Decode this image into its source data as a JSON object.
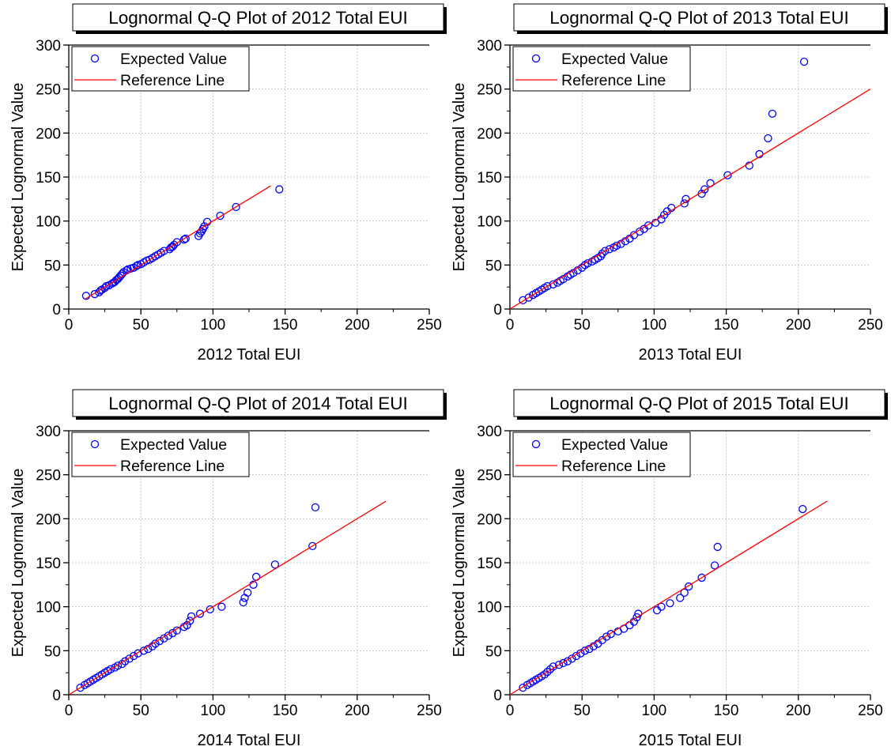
{
  "chart_data": [
    {
      "type": "scatter",
      "title": "Lognormal Q-Q Plot of 2012 Total EUI",
      "xlabel": "2012 Total EUI",
      "ylabel": "Expected Lognormal Value",
      "xlim": [
        0,
        250
      ],
      "ylim": [
        0,
        300
      ],
      "xticks": [
        "0",
        "50",
        "100",
        "150",
        "200",
        "250"
      ],
      "yticks": [
        "0",
        "50",
        "100",
        "150",
        "200",
        "250",
        "300"
      ],
      "grid": true,
      "legend": {
        "position": "top-left",
        "entries": [
          "Expected Value",
          "Reference Line"
        ]
      },
      "series": [
        {
          "name": "Expected Value",
          "marker": "circle",
          "color": "#0000ff",
          "points": [
            [
              12,
              15
            ],
            [
              18,
              17
            ],
            [
              21,
              19
            ],
            [
              22,
              21
            ],
            [
              23,
              22
            ],
            [
              25,
              24
            ],
            [
              26,
              26
            ],
            [
              28,
              27
            ],
            [
              30,
              29
            ],
            [
              31,
              30
            ],
            [
              32,
              31
            ],
            [
              33,
              33
            ],
            [
              34,
              34
            ],
            [
              35,
              36
            ],
            [
              36,
              38
            ],
            [
              37,
              40
            ],
            [
              38,
              42
            ],
            [
              40,
              44
            ],
            [
              41,
              45
            ],
            [
              43,
              46
            ],
            [
              45,
              47
            ],
            [
              47,
              49
            ],
            [
              48,
              50
            ],
            [
              50,
              51
            ],
            [
              52,
              53
            ],
            [
              54,
              55
            ],
            [
              56,
              56
            ],
            [
              58,
              58
            ],
            [
              60,
              60
            ],
            [
              62,
              62
            ],
            [
              64,
              64
            ],
            [
              66,
              66
            ],
            [
              70,
              68
            ],
            [
              71,
              70
            ],
            [
              72,
              71
            ],
            [
              73,
              73
            ],
            [
              75,
              76
            ],
            [
              80,
              79
            ],
            [
              81,
              80
            ],
            [
              90,
              83
            ],
            [
              91,
              86
            ],
            [
              92,
              88
            ],
            [
              93,
              91
            ],
            [
              94,
              94
            ],
            [
              96,
              99
            ],
            [
              105,
              106
            ],
            [
              116,
              116
            ],
            [
              146,
              136
            ]
          ]
        },
        {
          "name": "Reference Line",
          "type": "line",
          "color": "#ff0000",
          "points": [
            [
              11,
              11
            ],
            [
              140,
              140
            ]
          ]
        }
      ]
    },
    {
      "type": "scatter",
      "title": "Lognormal Q-Q Plot of 2013 Total EUI",
      "xlabel": "2013 Total EUI",
      "ylabel": "Expected Lognormal Value",
      "xlim": [
        0,
        250
      ],
      "ylim": [
        0,
        300
      ],
      "xticks": [
        "0",
        "50",
        "100",
        "150",
        "200",
        "250"
      ],
      "yticks": [
        "0",
        "50",
        "100",
        "150",
        "200",
        "250",
        "300"
      ],
      "grid": true,
      "legend": {
        "position": "top-left",
        "entries": [
          "Expected Value",
          "Reference Line"
        ]
      },
      "series": [
        {
          "name": "Expected Value",
          "marker": "circle",
          "color": "#0000ff",
          "points": [
            [
              9,
              10
            ],
            [
              13,
              13
            ],
            [
              16,
              16
            ],
            [
              18,
              18
            ],
            [
              20,
              20
            ],
            [
              22,
              22
            ],
            [
              24,
              24
            ],
            [
              26,
              26
            ],
            [
              30,
              28
            ],
            [
              33,
              30
            ],
            [
              35,
              32
            ],
            [
              37,
              34
            ],
            [
              40,
              37
            ],
            [
              42,
              39
            ],
            [
              44,
              41
            ],
            [
              47,
              44
            ],
            [
              50,
              47
            ],
            [
              52,
              50
            ],
            [
              54,
              52
            ],
            [
              57,
              54
            ],
            [
              59,
              56
            ],
            [
              61,
              58
            ],
            [
              63,
              60
            ],
            [
              64,
              63
            ],
            [
              66,
              66
            ],
            [
              69,
              68
            ],
            [
              72,
              70
            ],
            [
              74,
              72
            ],
            [
              77,
              74
            ],
            [
              80,
              77
            ],
            [
              83,
              80
            ],
            [
              86,
              84
            ],
            [
              90,
              88
            ],
            [
              93,
              91
            ],
            [
              96,
              95
            ],
            [
              101,
              98
            ],
            [
              105,
              102
            ],
            [
              107,
              107
            ],
            [
              109,
              111
            ],
            [
              112,
              115
            ],
            [
              121,
              120
            ],
            [
              122,
              125
            ],
            [
              133,
              131
            ],
            [
              135,
              136
            ],
            [
              139,
              143
            ],
            [
              151,
              152
            ],
            [
              166,
              163
            ],
            [
              173,
              176
            ],
            [
              179,
              194
            ],
            [
              182,
              222
            ],
            [
              204,
              281
            ]
          ]
        },
        {
          "name": "Reference Line",
          "type": "line",
          "color": "#ff0000",
          "points": [
            [
              0,
              0
            ],
            [
              250,
              250
            ]
          ]
        }
      ]
    },
    {
      "type": "scatter",
      "title": "Lognormal Q-Q Plot of 2014 Total EUI",
      "xlabel": "2014 Total EUI",
      "ylabel": "Expected Lognormal Value",
      "xlim": [
        0,
        250
      ],
      "ylim": [
        0,
        300
      ],
      "xticks": [
        "0",
        "50",
        "100",
        "150",
        "200",
        "250"
      ],
      "yticks": [
        "0",
        "50",
        "100",
        "150",
        "200",
        "250",
        "300"
      ],
      "grid": true,
      "legend": {
        "position": "top-left",
        "entries": [
          "Expected Value",
          "Reference Line"
        ]
      },
      "series": [
        {
          "name": "Expected Value",
          "marker": "circle",
          "color": "#0000ff",
          "points": [
            [
              8,
              8
            ],
            [
              11,
              11
            ],
            [
              13,
              13
            ],
            [
              15,
              15
            ],
            [
              17,
              17
            ],
            [
              19,
              19
            ],
            [
              21,
              21
            ],
            [
              23,
              23
            ],
            [
              25,
              25
            ],
            [
              27,
              27
            ],
            [
              29,
              29
            ],
            [
              32,
              31
            ],
            [
              34,
              33
            ],
            [
              37,
              35
            ],
            [
              39,
              38
            ],
            [
              42,
              41
            ],
            [
              45,
              44
            ],
            [
              48,
              47
            ],
            [
              52,
              50
            ],
            [
              55,
              52
            ],
            [
              58,
              55
            ],
            [
              60,
              58
            ],
            [
              63,
              61
            ],
            [
              66,
              64
            ],
            [
              69,
              67
            ],
            [
              72,
              70
            ],
            [
              75,
              73
            ],
            [
              80,
              77
            ],
            [
              82,
              79
            ],
            [
              84,
              84
            ],
            [
              85,
              89
            ],
            [
              91,
              92
            ],
            [
              98,
              97
            ],
            [
              106,
              100
            ],
            [
              121,
              105
            ],
            [
              122,
              110
            ],
            [
              124,
              116
            ],
            [
              128,
              125
            ],
            [
              130,
              134
            ],
            [
              143,
              148
            ],
            [
              169,
              169
            ],
            [
              171,
              213
            ]
          ]
        },
        {
          "name": "Reference Line",
          "type": "line",
          "color": "#ff0000",
          "points": [
            [
              0,
              0
            ],
            [
              220,
              220
            ]
          ]
        }
      ]
    },
    {
      "type": "scatter",
      "title": "Lognormal Q-Q Plot of 2015 Total EUI",
      "xlabel": "2015 Total EUI",
      "ylabel": "Expected Lognormal Value",
      "xlim": [
        0,
        250
      ],
      "ylim": [
        0,
        300
      ],
      "xticks": [
        "0",
        "50",
        "100",
        "150",
        "200",
        "250"
      ],
      "yticks": [
        "0",
        "50",
        "100",
        "150",
        "200",
        "250",
        "300"
      ],
      "grid": true,
      "legend": {
        "position": "top-left",
        "entries": [
          "Expected Value",
          "Reference Line"
        ]
      },
      "series": [
        {
          "name": "Expected Value",
          "marker": "circle",
          "color": "#0000ff",
          "points": [
            [
              9,
              8
            ],
            [
              12,
              11
            ],
            [
              14,
              13
            ],
            [
              16,
              15
            ],
            [
              18,
              17
            ],
            [
              20,
              19
            ],
            [
              22,
              21
            ],
            [
              24,
              23
            ],
            [
              26,
              26
            ],
            [
              28,
              29
            ],
            [
              30,
              32
            ],
            [
              34,
              34
            ],
            [
              37,
              36
            ],
            [
              40,
              38
            ],
            [
              43,
              41
            ],
            [
              46,
              44
            ],
            [
              49,
              47
            ],
            [
              52,
              50
            ],
            [
              55,
              52
            ],
            [
              58,
              55
            ],
            [
              61,
              58
            ],
            [
              64,
              62
            ],
            [
              67,
              66
            ],
            [
              70,
              69
            ],
            [
              75,
              72
            ],
            [
              79,
              75
            ],
            [
              83,
              79
            ],
            [
              86,
              83
            ],
            [
              88,
              88
            ],
            [
              89,
              92
            ],
            [
              102,
              96
            ],
            [
              105,
              100
            ],
            [
              111,
              104
            ],
            [
              118,
              110
            ],
            [
              121,
              116
            ],
            [
              124,
              123
            ],
            [
              133,
              133
            ],
            [
              142,
              147
            ],
            [
              144,
              168
            ],
            [
              203,
              211
            ]
          ]
        },
        {
          "name": "Reference Line",
          "type": "line",
          "color": "#ff0000",
          "points": [
            [
              0,
              0
            ],
            [
              220,
              220
            ]
          ]
        }
      ]
    }
  ]
}
